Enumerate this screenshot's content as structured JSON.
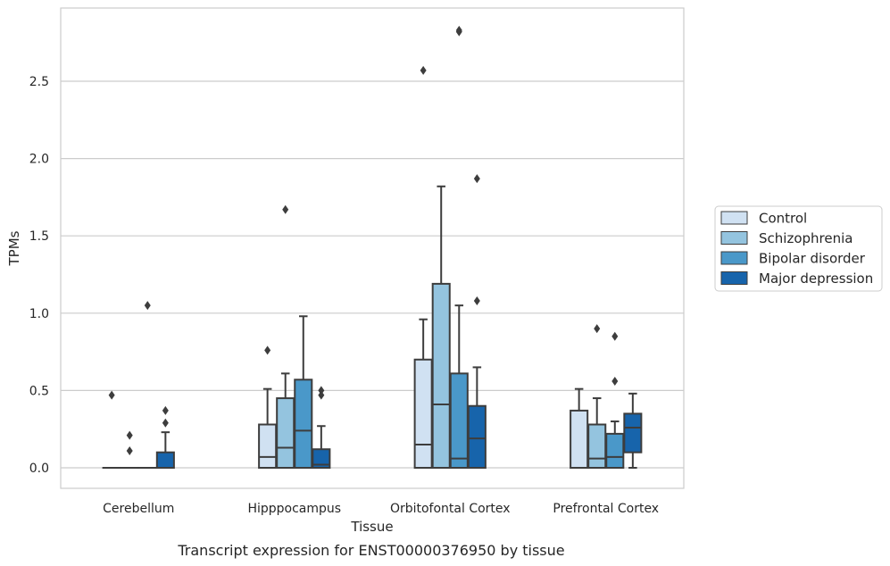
{
  "caption": "Transcript expression for ENST00000376950 by tissue",
  "chart_data": {
    "type": "box",
    "xlabel": "Tissue",
    "ylabel": "TPMs",
    "ylim": [
      -0.14,
      2.98
    ],
    "yticks": [
      "0.0",
      "0.5",
      "1.0",
      "1.5",
      "2.0",
      "2.5"
    ],
    "grid": true,
    "legend_position": "right",
    "categories": [
      "Cerebellum",
      "Hipppocampus",
      "Orbitofontal Cortex",
      "Prefrontal Cortex"
    ],
    "series": [
      {
        "name": "Control",
        "color": "#d0e1f2"
      },
      {
        "name": "Schizophrenia",
        "color": "#94c4df"
      },
      {
        "name": "Bipolar disorder",
        "color": "#4a98c9"
      },
      {
        "name": "Major depression",
        "color": "#1764ab"
      }
    ],
    "boxes": [
      [
        {
          "q1": 0,
          "median": 0,
          "q3": 0,
          "wlo": 0,
          "whi": 0,
          "outliers": [
            0.47
          ]
        },
        {
          "q1": 0,
          "median": 0,
          "q3": 0,
          "wlo": 0,
          "whi": 0,
          "outliers": [
            0.11,
            0.21
          ]
        },
        {
          "q1": 0,
          "median": 0,
          "q3": 0,
          "wlo": 0,
          "whi": 0,
          "outliers": [
            1.05
          ]
        },
        {
          "q1": 0,
          "median": 0,
          "q3": 0.1,
          "wlo": 0,
          "whi": 0.23,
          "outliers": [
            0.29,
            0.37
          ]
        }
      ],
      [
        {
          "q1": 0,
          "median": 0.07,
          "q3": 0.28,
          "wlo": 0,
          "whi": 0.51,
          "outliers": [
            0.76
          ]
        },
        {
          "q1": 0,
          "median": 0.13,
          "q3": 0.45,
          "wlo": 0,
          "whi": 0.61,
          "outliers": [
            1.67
          ]
        },
        {
          "q1": 0,
          "median": 0.24,
          "q3": 0.57,
          "wlo": 0,
          "whi": 0.98,
          "outliers": []
        },
        {
          "q1": 0,
          "median": 0.02,
          "q3": 0.12,
          "wlo": 0,
          "whi": 0.27,
          "outliers": [
            0.47,
            0.5
          ]
        }
      ],
      [
        {
          "q1": 0,
          "median": 0.15,
          "q3": 0.7,
          "wlo": 0,
          "whi": 0.96,
          "outliers": [
            2.57
          ]
        },
        {
          "q1": 0,
          "median": 0.41,
          "q3": 1.19,
          "wlo": 0,
          "whi": 1.82,
          "outliers": []
        },
        {
          "q1": 0,
          "median": 0.06,
          "q3": 0.61,
          "wlo": 0,
          "whi": 1.05,
          "outliers": [
            2.82,
            2.83
          ]
        },
        {
          "q1": 0,
          "median": 0.19,
          "q3": 0.4,
          "wlo": 0,
          "whi": 0.65,
          "outliers": [
            1.08,
            1.87
          ]
        }
      ],
      [
        {
          "q1": 0,
          "median": 0,
          "q3": 0.37,
          "wlo": 0,
          "whi": 0.51,
          "outliers": []
        },
        {
          "q1": 0,
          "median": 0.06,
          "q3": 0.28,
          "wlo": 0,
          "whi": 0.45,
          "outliers": [
            0.9
          ]
        },
        {
          "q1": 0,
          "median": 0.07,
          "q3": 0.22,
          "wlo": 0,
          "whi": 0.3,
          "outliers": [
            0.56,
            0.85
          ]
        },
        {
          "q1": 0.1,
          "median": 0.26,
          "q3": 0.35,
          "wlo": 0,
          "whi": 0.48,
          "outliers": []
        }
      ]
    ]
  }
}
